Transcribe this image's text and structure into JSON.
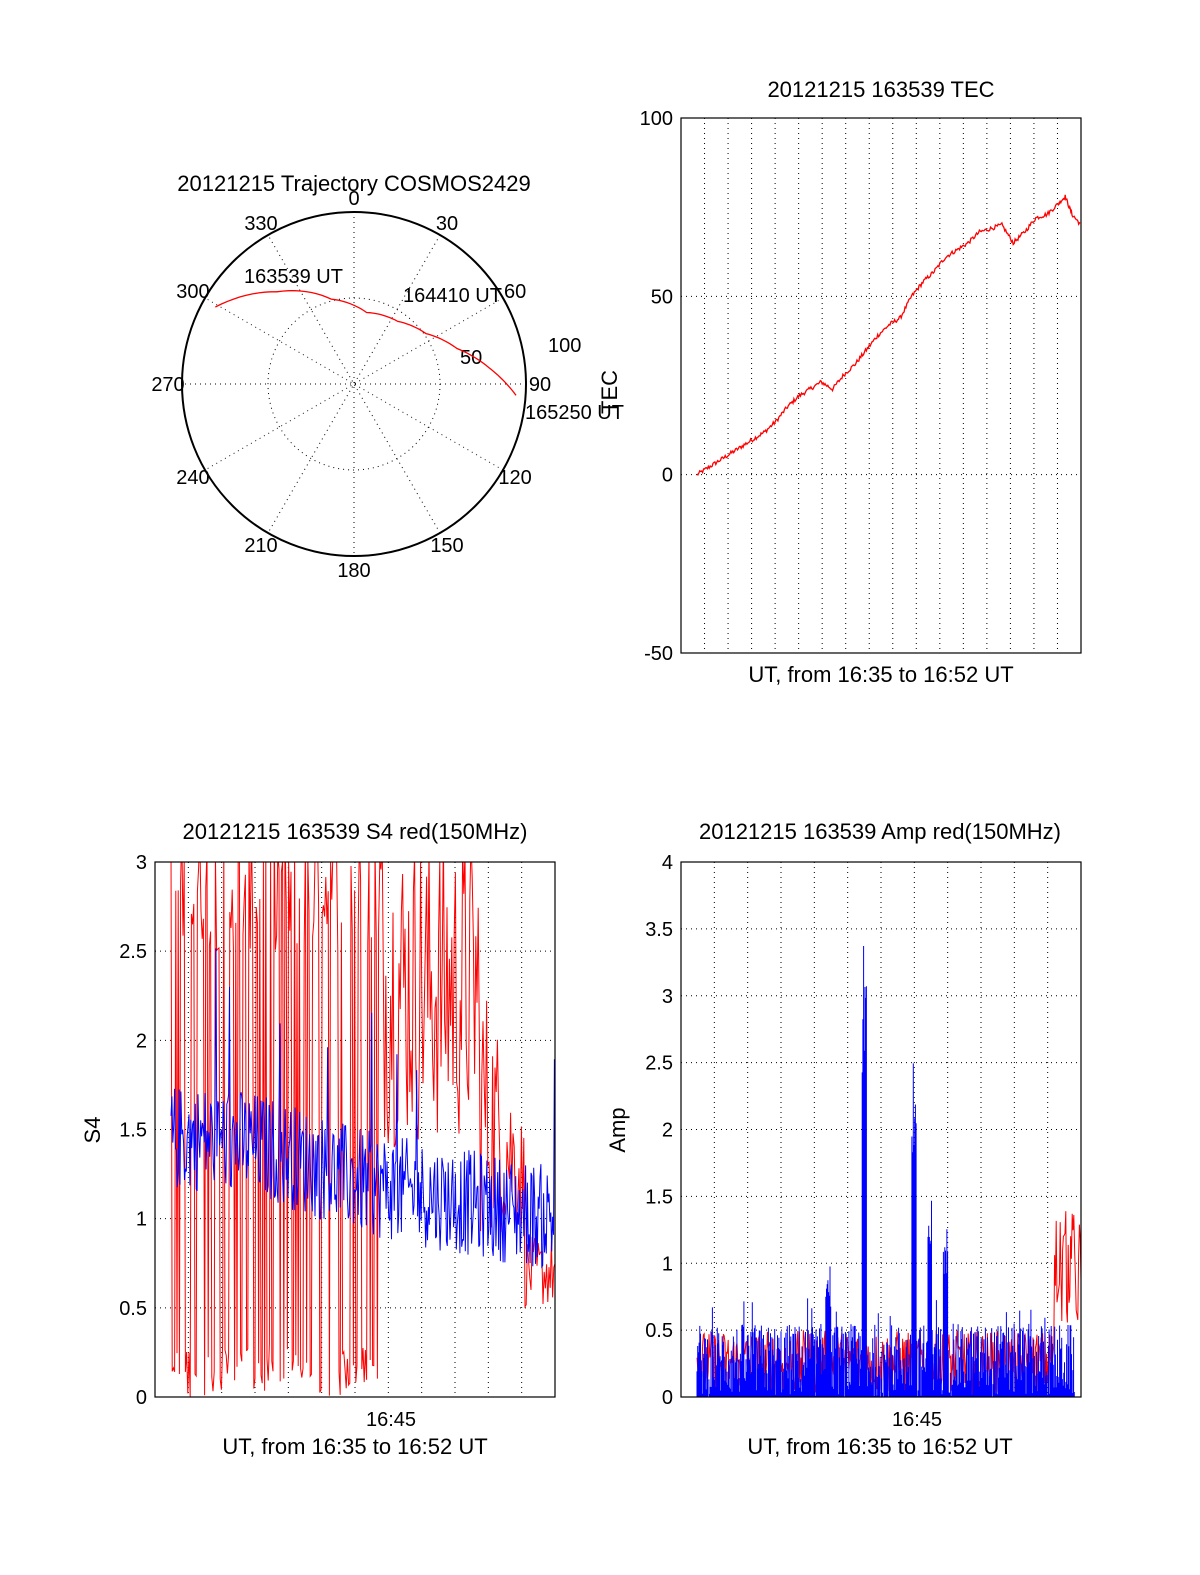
{
  "chart_data": [
    {
      "type": "polar",
      "title": "20121215 Trajectory COSMOS2429",
      "azimuth_labels": [
        "0",
        "30",
        "60",
        "90",
        "120",
        "150",
        "180",
        "210",
        "240",
        "270",
        "300",
        "330"
      ],
      "radial_labels": [
        "50",
        "100"
      ],
      "start_label": "163539 UT",
      "mid_label": "164410 UT",
      "end_label": "165250 UT",
      "trajectory": {
        "color": "#ff0000",
        "points": [
          {
            "az": 299,
            "el": 7
          },
          {
            "az": 320,
            "el": 27
          },
          {
            "az": 345,
            "el": 44
          },
          {
            "az": 10,
            "el": 52
          },
          {
            "az": 35,
            "el": 50
          },
          {
            "az": 55,
            "el": 44
          },
          {
            "az": 71,
            "el": 33
          },
          {
            "az": 83,
            "el": 19
          },
          {
            "az": 94,
            "el": 5
          }
        ]
      }
    },
    {
      "type": "line",
      "title": "20121215 163539 TEC",
      "xlabel": "UT, from 16:35 to 16:52 UT",
      "ylabel": "TEC",
      "ylim": [
        -50,
        100
      ],
      "yticks": [
        "-50",
        "0",
        "50",
        "100"
      ],
      "series": [
        {
          "color": "#ff0000",
          "x": [
            0.0,
            0.5,
            1.0,
            1.5,
            2.0,
            2.5,
            3.0,
            3.5,
            4.0,
            4.5,
            5.0,
            5.5,
            6.0,
            6.5,
            7.0,
            7.5,
            8.0,
            8.5,
            9.0,
            9.5,
            10.0,
            10.5,
            11.0,
            11.5,
            12.0,
            12.5,
            13.0,
            13.5,
            14.0,
            14.5,
            15.0,
            15.5,
            16.0,
            16.3,
            16.6,
            17.0
          ],
          "values": [
            0,
            2,
            4,
            6,
            8,
            10,
            12,
            15,
            19,
            22,
            24,
            26,
            24,
            28,
            31,
            35,
            39,
            42,
            44,
            50,
            54,
            57,
            61,
            63,
            65,
            68,
            69,
            70,
            65,
            68,
            72,
            73,
            76,
            78,
            73,
            70
          ]
        }
      ]
    },
    {
      "type": "line",
      "title": "20121215 163539 S4 red(150MHz)",
      "xlabel": "UT, from 16:35 to 16:52 UT",
      "ylabel": "S4",
      "ylim": [
        0,
        3
      ],
      "yticks": [
        "0",
        "0.5",
        "1",
        "1.5",
        "2",
        "2.5",
        "3"
      ],
      "xticks": [
        "16:45"
      ],
      "series": [
        {
          "color": "#ff0000",
          "style": "noisy",
          "values_pattern": "dense spikes 0–3 from 16:35 to 16:45, then 1–3 band, decaying to 0.5–0.8 near 16:52"
        },
        {
          "color": "#0000ff",
          "mean": [
            1.45,
            1.45,
            1.4,
            1.3,
            1.2,
            1.15,
            1.1,
            1.05,
            1.0
          ],
          "spread": 0.3
        }
      ]
    },
    {
      "type": "line",
      "title": "20121215 163539 Amp red(150MHz)",
      "xlabel": "UT, from 16:35 to 16:52 UT",
      "ylabel": "Amp",
      "ylim": [
        0,
        4
      ],
      "yticks": [
        "0",
        "0.5",
        "1",
        "1.5",
        "2",
        "2.5",
        "3",
        "3.5",
        "4"
      ],
      "xticks": [
        "16:45"
      ],
      "series": [
        {
          "color": "#0000ff",
          "baseline": 0.55,
          "peaks": [
            {
              "x": 7.4,
              "value": 3.4
            },
            {
              "x": 9.6,
              "value": 2.55
            },
            {
              "x": 10.3,
              "value": 1.5
            },
            {
              "x": 11.0,
              "value": 1.3
            },
            {
              "x": 5.8,
              "value": 1.0
            }
          ]
        },
        {
          "color": "#ff0000",
          "note_values": [
            0.9,
            1.2,
            1.4
          ]
        }
      ]
    }
  ]
}
